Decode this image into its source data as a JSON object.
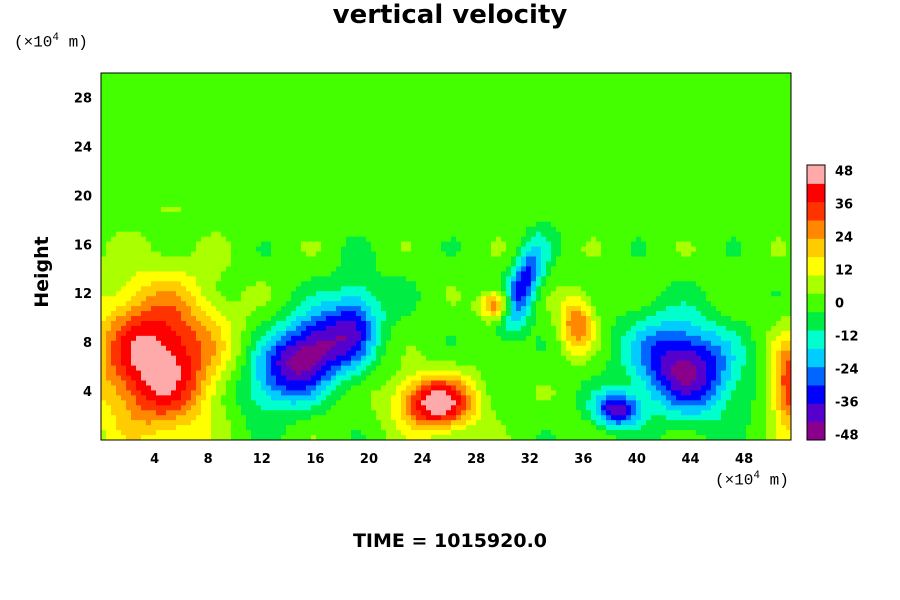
{
  "chart_data": {
    "type": "heatmap",
    "title": "vertical velocity",
    "xlabel": "",
    "ylabel": "Height",
    "x_unit": {
      "prefix": "(×10",
      "exp": "4",
      "suffix": " m)"
    },
    "y_unit": {
      "prefix": "(×10",
      "exp": "4",
      "suffix": " m)"
    },
    "xlim": [
      0,
      51.5
    ],
    "ylim": [
      0,
      30
    ],
    "x_ticks": [
      "4",
      "8",
      "12",
      "16",
      "20",
      "24",
      "28",
      "32",
      "36",
      "40",
      "44",
      "48"
    ],
    "y_ticks": [
      "4",
      "8",
      "12",
      "16",
      "20",
      "24",
      "28"
    ],
    "colorbar": {
      "range": [
        -50,
        50
      ],
      "ticks": [
        "48",
        "36",
        "24",
        "12",
        "0",
        "-12",
        "-24",
        "-36",
        "-48"
      ],
      "colors": [
        "#8b008b",
        "#5500cc",
        "#0000ff",
        "#0066ff",
        "#00ccff",
        "#00ffcc",
        "#00ee44",
        "#44ff00",
        "#aaff00",
        "#ffff00",
        "#ffcc00",
        "#ff8800",
        "#ff3300",
        "#ff0000",
        "#ffaaaa"
      ]
    },
    "features": [
      {
        "x": 4.2,
        "y": 6.5,
        "sx": 3.2,
        "sy": 4.2,
        "value": 50
      },
      {
        "x": 15.5,
        "y": 7.0,
        "sx": 1.9,
        "sy": 3.6,
        "value": -50,
        "tilt": -0.85
      },
      {
        "x": 25.0,
        "y": 3.0,
        "sx": 2.0,
        "sy": 1.6,
        "value": 50
      },
      {
        "x": 43.5,
        "y": 6.0,
        "sx": 2.4,
        "sy": 2.8,
        "value": -46,
        "tilt": 0.7
      },
      {
        "x": 31.5,
        "y": 12.5,
        "sx": 0.8,
        "sy": 2.6,
        "value": -36,
        "tilt": -0.3
      },
      {
        "x": 29.5,
        "y": 11.0,
        "sx": 0.8,
        "sy": 0.8,
        "value": 34
      },
      {
        "x": 35.5,
        "y": 9.5,
        "sx": 0.9,
        "sy": 1.6,
        "value": 30
      },
      {
        "x": 38.5,
        "y": 2.5,
        "sx": 1.2,
        "sy": 1.0,
        "value": -40
      },
      {
        "x": 51.5,
        "y": 4.5,
        "sx": 1.0,
        "sy": 2.6,
        "value": 40
      },
      {
        "x": 19.0,
        "y": 9.5,
        "sx": 1.0,
        "sy": 3.0,
        "value": -12
      }
    ]
  },
  "time_label": "TIME = 1015920.0"
}
